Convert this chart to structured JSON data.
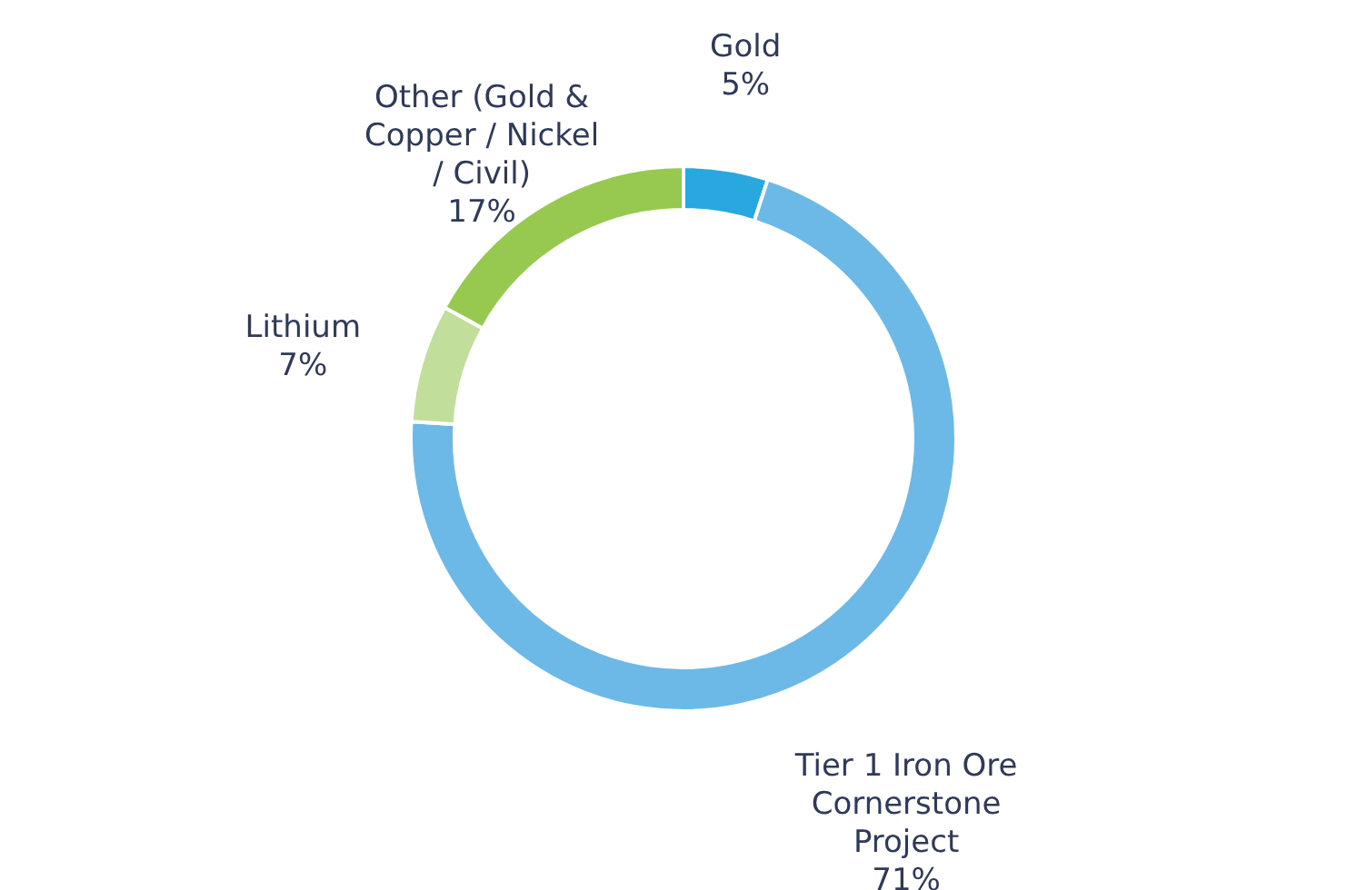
{
  "chart_data": {
    "type": "donut",
    "categories": [
      "Gold",
      "Tier 1 Iron Ore Cornerstone Project",
      "Lithium",
      "Other (Gold & Copper / Nickel / Civil)"
    ],
    "values": [
      5,
      71,
      7,
      17
    ],
    "value_labels": [
      "5%",
      "71%",
      "7%",
      "17%"
    ],
    "colors": [
      "#29a8e0",
      "#6cb8e6",
      "#c1df9a",
      "#97c950"
    ],
    "legend": false
  }
}
